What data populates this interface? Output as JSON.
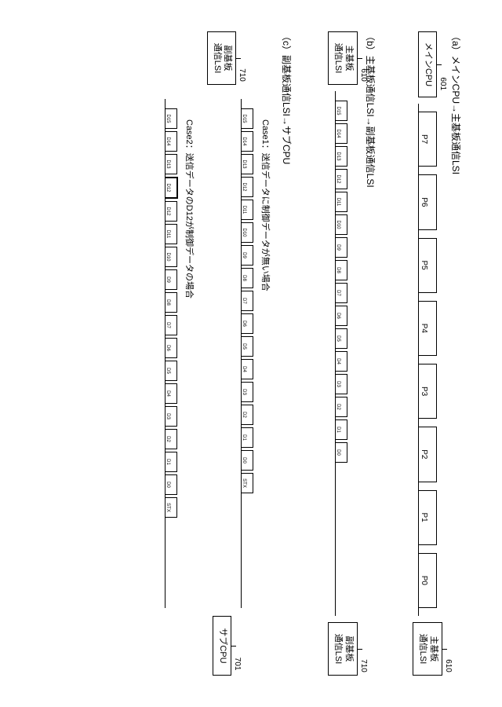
{
  "colors": {
    "stroke": "#000000",
    "background": "#ffffff",
    "text": "#000000"
  },
  "sections": {
    "a": {
      "title": "（a）メインCPU→主基板通信LSI",
      "left_node": {
        "line1": "メインCPU",
        "ref": "601"
      },
      "right_node": {
        "line1": "主基板",
        "line2": "通信LSI",
        "ref": "610"
      },
      "bits": [
        "P7",
        "P6",
        "P5",
        "P4",
        "P3",
        "P2",
        "P1",
        "P0"
      ]
    },
    "b": {
      "title": "（b）主基板通信LSI→副基板通信LSI",
      "left_node": {
        "line1": "主基板",
        "line2": "通信LSI",
        "ref": "610"
      },
      "right_node": {
        "line1": "副基板",
        "line2": "通信LSI",
        "ref": "710"
      },
      "packets": [
        "D15",
        "D14",
        "D13",
        "D12",
        "D11",
        "D10",
        "D9",
        "D8",
        "D7",
        "D6",
        "D5",
        "D4",
        "D3",
        "D2",
        "D1",
        "D0"
      ]
    },
    "c": {
      "title": "（c）副基板通信LSI→サブCPU",
      "left_node": {
        "line1": "副基板",
        "line2": "通信LSI",
        "ref": "710"
      },
      "right_node": {
        "line1": "サブCPU",
        "ref": "701"
      },
      "case1_label": "Case1：送信データに制御データが無い場合",
      "case1_packets": [
        "D15",
        "D14",
        "D13",
        "D12",
        "D11",
        "D10",
        "D9",
        "D8",
        "D7",
        "D6",
        "D5",
        "D4",
        "D3",
        "D2",
        "D1",
        "D0",
        "STX"
      ],
      "case2_label": "Case2：送信データのD12が制御データの場合",
      "case2_packets": [
        "D15",
        "D14",
        "D13",
        "D12",
        "D12",
        "D11",
        "D10",
        "D9",
        "D8",
        "D7",
        "D6",
        "D5",
        "D4",
        "D3",
        "D2",
        "D1",
        "D0",
        "STX"
      ],
      "case2_highlight_index": 3
    }
  }
}
